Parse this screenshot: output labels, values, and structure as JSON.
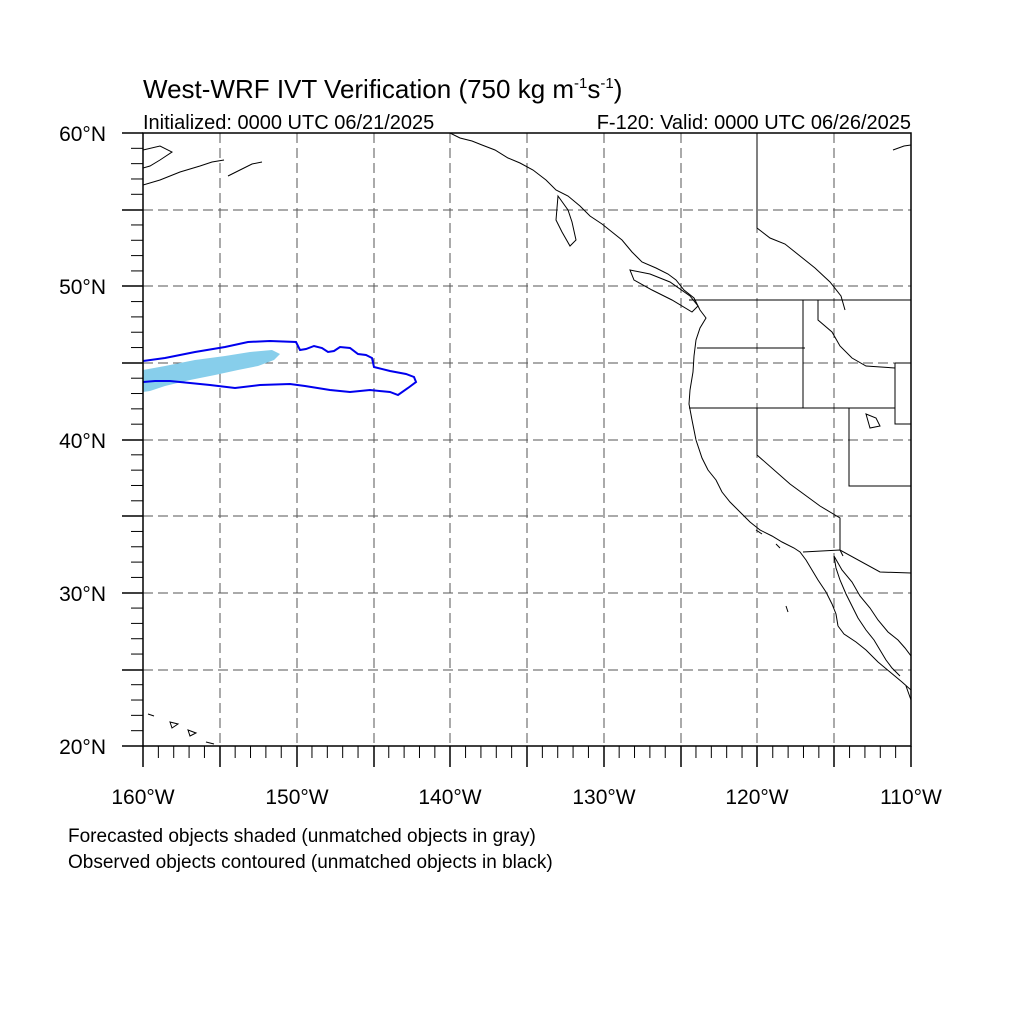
{
  "title": {
    "main": "West-WRF IVT Verification (750 kg m",
    "exp1": "-1",
    "mid": "s",
    "exp2": "-1",
    "close": ")"
  },
  "subtitle_left": "Initialized: 0000 UTC 06/21/2025",
  "subtitle_right": "F-120: Valid: 0000 UTC 06/26/2025",
  "lat_labels": [
    "60°N",
    "50°N",
    "40°N",
    "30°N",
    "20°N"
  ],
  "lon_labels": [
    "160°W",
    "150°W",
    "140°W",
    "130°W",
    "120°W",
    "110°W"
  ],
  "extent": {
    "lon": [
      -160,
      -110
    ],
    "lat": [
      20,
      60
    ]
  },
  "captions": [
    "Forecasted objects shaded (unmatched objects in gray)",
    "Observed objects contoured (unmatched objects in black)"
  ],
  "colors": {
    "forecast_shading": "#87ceeb",
    "observed_contour": "#0000ee",
    "grid": "#555555",
    "coast": "#000000"
  }
}
